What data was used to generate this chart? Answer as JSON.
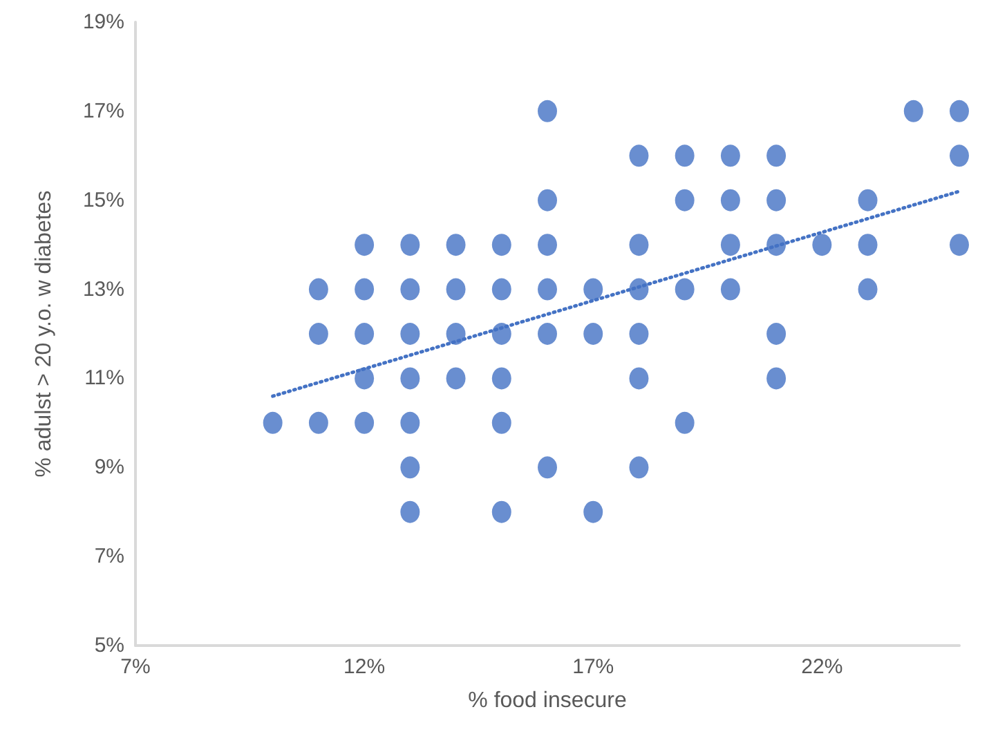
{
  "chart_data": {
    "type": "scatter",
    "xlabel": "% food insecure",
    "ylabel": "% adulst > 20 y.o. w diabetes",
    "xlim": [
      7,
      25
    ],
    "ylim": [
      5,
      19
    ],
    "xticks": [
      {
        "value": 7,
        "label": "7%"
      },
      {
        "value": 12,
        "label": "12%"
      },
      {
        "value": 17,
        "label": "17%"
      },
      {
        "value": 22,
        "label": "22%"
      }
    ],
    "yticks": [
      {
        "value": 5,
        "label": "5%"
      },
      {
        "value": 7,
        "label": "7%"
      },
      {
        "value": 9,
        "label": "9%"
      },
      {
        "value": 11,
        "label": "11%"
      },
      {
        "value": 13,
        "label": "13%"
      },
      {
        "value": 15,
        "label": "15%"
      },
      {
        "value": 17,
        "label": "17%"
      },
      {
        "value": 19,
        "label": "19%"
      }
    ],
    "grid": false,
    "series": [
      {
        "color": "#4472c4",
        "marker": "circle",
        "x": [
          10,
          11,
          11,
          11,
          12,
          12,
          12,
          12,
          12,
          13,
          13,
          13,
          13,
          13,
          13,
          13,
          14,
          14,
          14,
          14,
          15,
          15,
          15,
          15,
          15,
          15,
          16,
          16,
          16,
          16,
          16,
          16,
          17,
          17,
          17,
          18,
          18,
          18,
          18,
          18,
          18,
          19,
          19,
          19,
          19,
          20,
          20,
          20,
          20,
          21,
          21,
          21,
          21,
          21,
          22,
          23,
          23,
          23,
          24,
          25,
          25,
          25
        ],
        "values": [
          10,
          13,
          12,
          10,
          14,
          13,
          12,
          11,
          10,
          14,
          13,
          12,
          11,
          10,
          9,
          8,
          14,
          13,
          12,
          11,
          14,
          13,
          12,
          11,
          10,
          8,
          17,
          15,
          14,
          13,
          12,
          9,
          13,
          12,
          8,
          16,
          14,
          13,
          12,
          11,
          9,
          16,
          15,
          13,
          10,
          16,
          15,
          14,
          13,
          16,
          15,
          14,
          12,
          11,
          14,
          15,
          14,
          13,
          17,
          17,
          16,
          14
        ]
      },
      {
        "type": "line",
        "color": "#4472c4",
        "marker": "none",
        "line_style": "dotted",
        "x": [
          10,
          25
        ],
        "values": [
          10.6,
          15.2
        ]
      }
    ]
  }
}
